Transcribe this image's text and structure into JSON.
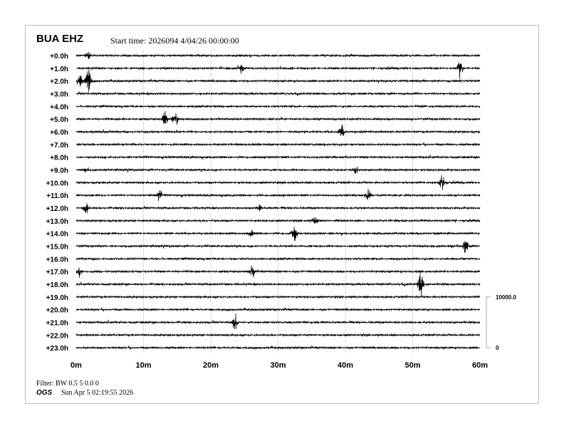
{
  "header": {
    "station": "BUA EHZ",
    "start_time": "Start time: 2026094  4/04/26 00:00:00"
  },
  "footer": {
    "filter": "Filter: BW 0.5 5 0.0 0",
    "org": "OGS",
    "timestamp": "Sun Apr  5 02:19:55 2026"
  },
  "chart_data": {
    "type": "line",
    "subtype": "helicorder",
    "row_labels": [
      "+0.0h",
      "+1.0h",
      "+2.0h",
      "+3.0h",
      "+4.0h",
      "+5.0h",
      "+6.0h",
      "+7.0h",
      "+8.0h",
      "+9.0h",
      "+10.0h",
      "+11.0h",
      "+12.0h",
      "+13.0h",
      "+14.0h",
      "+15.0h",
      "+16.0h",
      "+17.0h",
      "+18.0h",
      "+19.0h",
      "+20.0h",
      "+21.0h",
      "+22.0h",
      "+23.0h"
    ],
    "x_ticks": [
      "0m",
      "10m",
      "20m",
      "30m",
      "40m",
      "50m",
      "60m"
    ],
    "xlim": [
      0,
      60
    ],
    "grid": true,
    "trace_color": "#000000",
    "grid_color": "#dddddd",
    "scale": {
      "top_label": "10000.0",
      "bottom_label": "0"
    },
    "events": [
      {
        "row": 0,
        "minute": 1.8,
        "amp": 0.3
      },
      {
        "row": 1,
        "minute": 57.0,
        "amp": 0.6
      },
      {
        "row": 1,
        "minute": 24.5,
        "amp": 0.3
      },
      {
        "row": 2,
        "minute": 1.8,
        "amp": 1.6
      },
      {
        "row": 2,
        "minute": 0.5,
        "amp": 0.6
      },
      {
        "row": 5,
        "minute": 13.1,
        "amp": 0.5
      },
      {
        "row": 5,
        "minute": 14.7,
        "amp": 0.7
      },
      {
        "row": 6,
        "minute": 39.5,
        "amp": 0.8
      },
      {
        "row": 9,
        "minute": 1.5,
        "amp": 0.3
      },
      {
        "row": 9,
        "minute": 41.5,
        "amp": 0.3
      },
      {
        "row": 10,
        "minute": 54.4,
        "amp": 0.6
      },
      {
        "row": 11,
        "minute": 12.4,
        "amp": 0.4
      },
      {
        "row": 11,
        "minute": 43.4,
        "amp": 0.5
      },
      {
        "row": 12,
        "minute": 27.1,
        "amp": 0.4
      },
      {
        "row": 12,
        "minute": 1.5,
        "amp": 0.4
      },
      {
        "row": 13,
        "minute": 35.5,
        "amp": 0.3
      },
      {
        "row": 14,
        "minute": 32.4,
        "amp": 0.7
      },
      {
        "row": 14,
        "minute": 26.0,
        "amp": 0.3
      },
      {
        "row": 15,
        "minute": 57.9,
        "amp": 0.6
      },
      {
        "row": 17,
        "minute": 0.3,
        "amp": 0.5
      },
      {
        "row": 17,
        "minute": 26.2,
        "amp": 0.5
      },
      {
        "row": 18,
        "minute": 51.2,
        "amp": 0.9
      },
      {
        "row": 21,
        "minute": 23.6,
        "amp": 0.6
      }
    ]
  }
}
